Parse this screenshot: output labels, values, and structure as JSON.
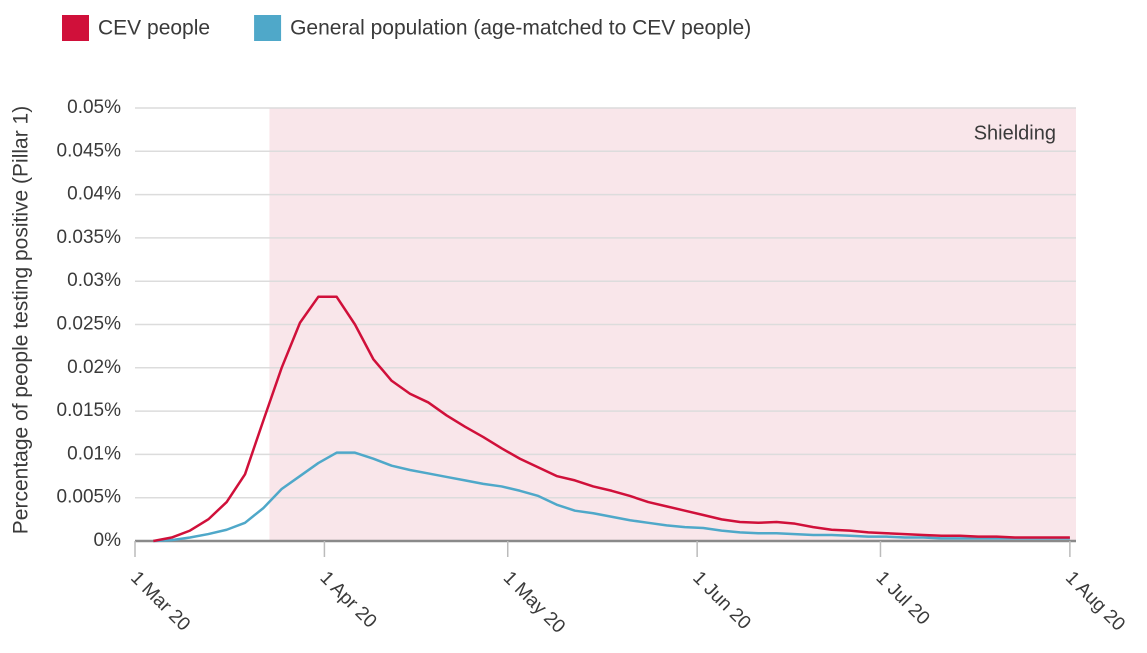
{
  "chart_data": {
    "type": "line",
    "y_label": "Percentage of people testing positive (Pillar 1)",
    "x": [
      "2020-03-04",
      "2020-03-07",
      "2020-03-10",
      "2020-03-13",
      "2020-03-16",
      "2020-03-19",
      "2020-03-22",
      "2020-03-25",
      "2020-03-28",
      "2020-03-31",
      "2020-04-03",
      "2020-04-06",
      "2020-04-09",
      "2020-04-12",
      "2020-04-15",
      "2020-04-18",
      "2020-04-21",
      "2020-04-24",
      "2020-04-27",
      "2020-04-30",
      "2020-05-03",
      "2020-05-06",
      "2020-05-09",
      "2020-05-12",
      "2020-05-15",
      "2020-05-18",
      "2020-05-21",
      "2020-05-24",
      "2020-05-27",
      "2020-05-30",
      "2020-06-02",
      "2020-06-05",
      "2020-06-08",
      "2020-06-11",
      "2020-06-14",
      "2020-06-17",
      "2020-06-20",
      "2020-06-23",
      "2020-06-26",
      "2020-06-29",
      "2020-07-02",
      "2020-07-05",
      "2020-07-08",
      "2020-07-11",
      "2020-07-14",
      "2020-07-17",
      "2020-07-20",
      "2020-07-23",
      "2020-07-26",
      "2020-07-29",
      "2020-08-01"
    ],
    "series": [
      {
        "name": "CEV people",
        "color": "#d0103a",
        "values": [
          0,
          0.0004,
          0.0012,
          0.0025,
          0.0045,
          0.0077,
          0.0139,
          0.02,
          0.0252,
          0.0282,
          0.0282,
          0.025,
          0.021,
          0.0185,
          0.017,
          0.016,
          0.0145,
          0.0132,
          0.012,
          0.0107,
          0.0095,
          0.0085,
          0.0075,
          0.007,
          0.0063,
          0.0058,
          0.0052,
          0.0045,
          0.004,
          0.0035,
          0.003,
          0.0025,
          0.0022,
          0.0021,
          0.0022,
          0.002,
          0.0016,
          0.0013,
          0.0012,
          0.001,
          0.0009,
          0.0008,
          0.0007,
          0.0006,
          0.0006,
          0.0005,
          0.0005,
          0.0004,
          0.0004,
          0.0004,
          0.0004
        ]
      },
      {
        "name": "General population (age-matched to CEV people)",
        "color": "#4fa8c9",
        "values": [
          0,
          0.0001,
          0.0004,
          0.0008,
          0.0013,
          0.0021,
          0.0038,
          0.006,
          0.0075,
          0.009,
          0.0102,
          0.0102,
          0.0095,
          0.0087,
          0.0082,
          0.0078,
          0.0074,
          0.007,
          0.0066,
          0.0063,
          0.0058,
          0.0052,
          0.0042,
          0.0035,
          0.0032,
          0.0028,
          0.0024,
          0.0021,
          0.0018,
          0.0016,
          0.0015,
          0.0012,
          0.001,
          0.0009,
          0.0009,
          0.0008,
          0.0007,
          0.0007,
          0.0006,
          0.0005,
          0.0005,
          0.0004,
          0.0004,
          0.0003,
          0.0003,
          0.0003,
          0.0003,
          0.0003,
          0.0003,
          0.0003,
          0.0003
        ]
      }
    ],
    "xlim": [
      "2020-03-01",
      "2020-08-02"
    ],
    "xticks": [
      {
        "value": "2020-03-01",
        "label": "1 Mar 20"
      },
      {
        "value": "2020-04-01",
        "label": "1 Apr 20"
      },
      {
        "value": "2020-05-01",
        "label": "1 May 20"
      },
      {
        "value": "2020-06-01",
        "label": "1 Jun 20"
      },
      {
        "value": "2020-07-01",
        "label": "1 Jul 20"
      },
      {
        "value": "2020-08-01",
        "label": "1 Aug 20"
      }
    ],
    "ylim": [
      0,
      0.05
    ],
    "yticks": [
      {
        "value": 0,
        "label": "0%"
      },
      {
        "value": 0.005,
        "label": "0.005%"
      },
      {
        "value": 0.01,
        "label": "0.01%"
      },
      {
        "value": 0.015,
        "label": "0.015%"
      },
      {
        "value": 0.02,
        "label": "0.02%"
      },
      {
        "value": 0.025,
        "label": "0.025%"
      },
      {
        "value": 0.03,
        "label": "0.03%"
      },
      {
        "value": 0.035,
        "label": "0.035%"
      },
      {
        "value": 0.04,
        "label": "0.04%"
      },
      {
        "value": 0.045,
        "label": "0.045%"
      },
      {
        "value": 0.05,
        "label": "0.05%"
      }
    ],
    "grid": true,
    "shading": {
      "start": "2020-03-23",
      "label": "Shielding",
      "color": "#f9e6ea"
    }
  }
}
